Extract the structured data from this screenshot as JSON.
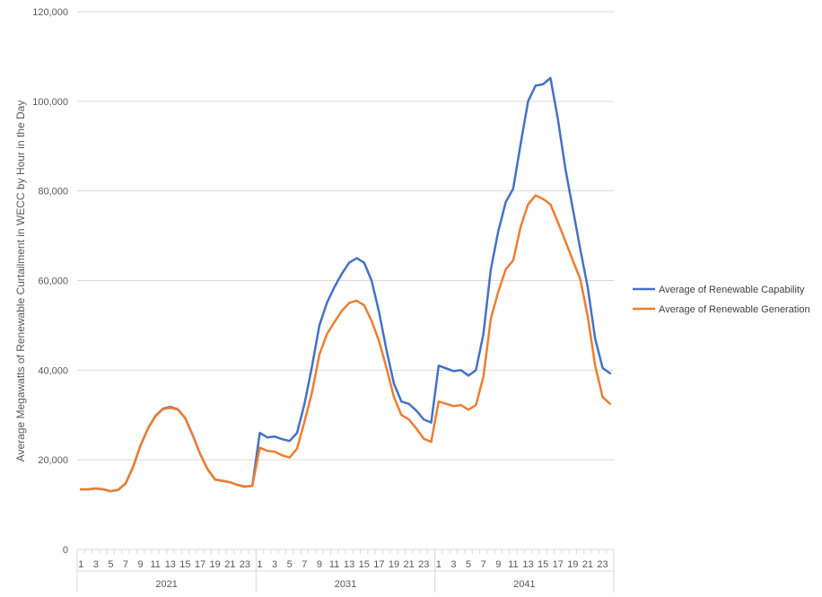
{
  "chart_data": {
    "type": "line",
    "ylabel": "Average Megawatts of Renewable Curtailment in WECC by Hour in the Day",
    "xlabel": "",
    "ylim": [
      0,
      120000
    ],
    "yticks": [
      0,
      20000,
      40000,
      60000,
      80000,
      100000,
      120000
    ],
    "ytick_labels": [
      "0",
      "20,000",
      "40,000",
      "60,000",
      "80,000",
      "100,000",
      "120,000"
    ],
    "grid": "horizontal",
    "legend_position": "right",
    "groups": [
      {
        "label": "2021",
        "hours": [
          1,
          2,
          3,
          4,
          5,
          6,
          7,
          8,
          9,
          10,
          11,
          12,
          13,
          14,
          15,
          16,
          17,
          18,
          19,
          20,
          21,
          22,
          23,
          24
        ]
      },
      {
        "label": "2031",
        "hours": [
          1,
          2,
          3,
          4,
          5,
          6,
          7,
          8,
          9,
          10,
          11,
          12,
          13,
          14,
          15,
          16,
          17,
          18,
          19,
          20,
          21,
          22,
          23,
          24
        ]
      },
      {
        "label": "2041",
        "hours": [
          1,
          2,
          3,
          4,
          5,
          6,
          7,
          8,
          9,
          10,
          11,
          12,
          13,
          14,
          15,
          16,
          17,
          18,
          19,
          20,
          21,
          22,
          23,
          24
        ]
      }
    ],
    "hour_tick_labels": [
      "1",
      "",
      "3",
      "",
      "5",
      "",
      "7",
      "",
      "9",
      "",
      "11",
      "",
      "13",
      "",
      "15",
      "",
      "17",
      "",
      "19",
      "",
      "21",
      "",
      "23",
      ""
    ],
    "series": [
      {
        "name": "Average of Renewable Capability",
        "color": "#4472C4",
        "values": [
          13400,
          13400,
          13600,
          13400,
          13000,
          13300,
          14700,
          18400,
          23200,
          27000,
          29800,
          31400,
          31800,
          31300,
          29300,
          25500,
          21300,
          17900,
          15600,
          15300,
          15000,
          14400,
          14000,
          14200,
          26000,
          25000,
          25200,
          24600,
          24200,
          26000,
          32500,
          40800,
          50000,
          55000,
          58500,
          61500,
          64000,
          65000,
          64000,
          60000,
          53000,
          44500,
          37000,
          33000,
          32500,
          31000,
          29000,
          28300,
          41000,
          40400,
          39800,
          40000,
          38800,
          40000,
          48000,
          62500,
          71000,
          77500,
          80500,
          90500,
          100000,
          103500,
          103800,
          105200,
          96000,
          85000,
          76000,
          67000,
          58500,
          47000,
          40500,
          39300
        ]
      },
      {
        "name": "Average of Renewable Generation",
        "color": "#ED7D31",
        "values": [
          13400,
          13400,
          13600,
          13400,
          13000,
          13300,
          14700,
          18400,
          23200,
          27000,
          29700,
          31300,
          31600,
          31200,
          29300,
          25500,
          21300,
          17900,
          15600,
          15300,
          15000,
          14400,
          14000,
          14200,
          22700,
          22000,
          21800,
          21000,
          20500,
          22500,
          28500,
          35000,
          43500,
          48000,
          50700,
          53200,
          55000,
          55500,
          54500,
          51000,
          46500,
          40500,
          34000,
          30000,
          29000,
          27000,
          24700,
          24000,
          33000,
          32500,
          32000,
          32200,
          31200,
          32200,
          38500,
          51500,
          57500,
          62500,
          64500,
          72000,
          77000,
          79000,
          78200,
          77000,
          73000,
          68800,
          64500,
          60300,
          52000,
          41000,
          34000,
          32500
        ]
      }
    ]
  }
}
